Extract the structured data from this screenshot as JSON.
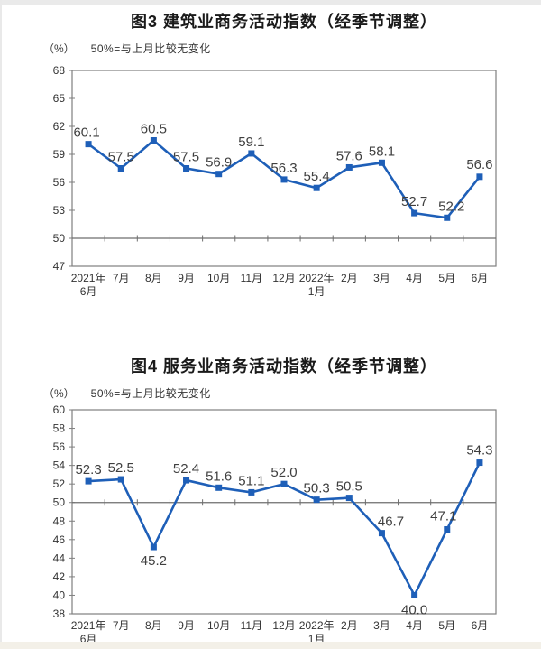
{
  "page": {
    "background": "#ffffff",
    "edge_color": "#eaeaea"
  },
  "chart_data": [
    {
      "type": "line",
      "title": "图3  建筑业商务活动指数（经季节调整）",
      "unit_label": "（%）",
      "subtitle_note": "50%=与上月比较无变化",
      "categories": [
        "2021年\n6月",
        "7月",
        "8月",
        "9月",
        "10月",
        "11月",
        "12月",
        "2022年\n1月",
        "2月",
        "3月",
        "4月",
        "5月",
        "6月"
      ],
      "values": [
        60.1,
        57.5,
        60.5,
        57.5,
        56.9,
        59.1,
        56.3,
        55.4,
        57.6,
        58.1,
        52.7,
        52.2,
        56.6
      ],
      "ylim": [
        47,
        68
      ],
      "ytick_step": 3,
      "reference_line": 50,
      "grid": false,
      "legend": "none",
      "line_color": "#1E5FB8",
      "marker": "square",
      "label_color": "#3f3f3f",
      "axis_color": "#7f7f7f",
      "label_offsets": {
        "0": [
          -2,
          -8
        ],
        "11": [
          5,
          -8
        ],
        "12": [
          0,
          -9
        ]
      }
    },
    {
      "type": "line",
      "title": "图4  服务业商务活动指数（经季节调整）",
      "unit_label": "（%）",
      "subtitle_note": "50%=与上月比较无变化",
      "categories": [
        "2021年\n6月",
        "7月",
        "8月",
        "9月",
        "10月",
        "11月",
        "12月",
        "2022年\n1月",
        "2月",
        "3月",
        "4月",
        "5月",
        "6月"
      ],
      "values": [
        52.3,
        52.5,
        45.2,
        52.4,
        51.6,
        51.1,
        52.0,
        50.3,
        50.5,
        46.7,
        40.0,
        47.1,
        54.3
      ],
      "ylim": [
        38,
        60
      ],
      "ytick_step": 2,
      "reference_line": 50,
      "grid": false,
      "legend": "none",
      "line_color": "#1E5FB8",
      "marker": "square",
      "label_color": "#3f3f3f",
      "axis_color": "#7f7f7f",
      "label_offsets": {
        "2": [
          0,
          20
        ],
        "9": [
          10,
          -8
        ],
        "10": [
          0,
          21
        ],
        "11": [
          -4,
          -10
        ],
        "12": [
          0,
          -9
        ]
      }
    }
  ]
}
